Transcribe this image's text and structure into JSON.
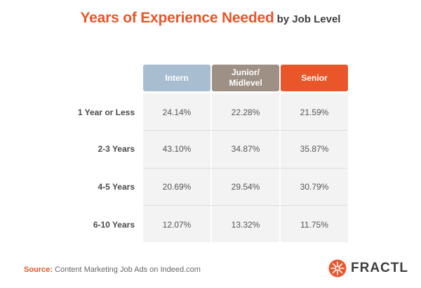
{
  "chart_data": {
    "type": "table",
    "title": "Years of Experience Needed",
    "subtitle": "by Job Level",
    "columns": [
      {
        "label": "Intern",
        "color": "#a9bdd0"
      },
      {
        "label": "Junior/\nMidlevel",
        "color": "#9f9085"
      },
      {
        "label": "Senior",
        "color": "#e8562a"
      }
    ],
    "rows": [
      {
        "label": "1 Year or Less",
        "values": [
          "24.14%",
          "22.28%",
          "21.59%"
        ]
      },
      {
        "label": "2-3 Years",
        "values": [
          "43.10%",
          "34.87%",
          "35.87%"
        ]
      },
      {
        "label": "4-5 Years",
        "values": [
          "20.69%",
          "29.54%",
          "30.79%"
        ]
      },
      {
        "label": "6-10 Years",
        "values": [
          "12.07%",
          "13.32%",
          "11.75%"
        ]
      }
    ]
  },
  "source": {
    "label": "Source:",
    "text": "Content Marketing Job Ads on Indeed.com"
  },
  "logo": {
    "text": "FRACTL",
    "color": "#e8562a",
    "icon": "fractl-burst-icon"
  }
}
